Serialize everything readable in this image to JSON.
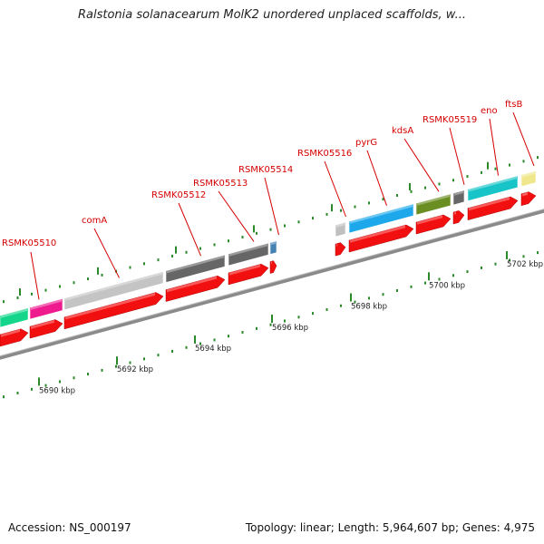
{
  "title": "Ralstonia solanacearum MolK2 unordered unplaced scaffolds, w...",
  "footer": {
    "accession": "Accession: NS_000197",
    "topology": "Topology: linear; Length: 5,964,607 bp; Genes: 4,975"
  },
  "axis": {
    "kbp_labels": [
      "5690 kbp",
      "5692 kbp",
      "5694 kbp",
      "5696 kbp",
      "5698 kbp",
      "5700 kbp",
      "5702 kbp"
    ]
  },
  "genes": [
    {
      "label": "",
      "color": "#14d68a"
    },
    {
      "label": "RSMK05510",
      "color": "#ee1a8e"
    },
    {
      "label": "comA",
      "color": "#c4c4c4"
    },
    {
      "label": "RSMK05512",
      "color": "#666666"
    },
    {
      "label": "RSMK05513",
      "color": "#666666"
    },
    {
      "label": "RSMK05514",
      "color": "#4682b4"
    },
    {
      "label": "RSMK05516",
      "color": "#c0c0c0"
    },
    {
      "label": "pyrG",
      "color": "#1ea8ec"
    },
    {
      "label": "kdsA",
      "color": "#6b8e23"
    },
    {
      "label": "RSMK05519",
      "color": "#666666"
    },
    {
      "label": "eno",
      "color": "#17c4c8"
    },
    {
      "label": "ftsB",
      "color": "#f0e68c"
    }
  ]
}
